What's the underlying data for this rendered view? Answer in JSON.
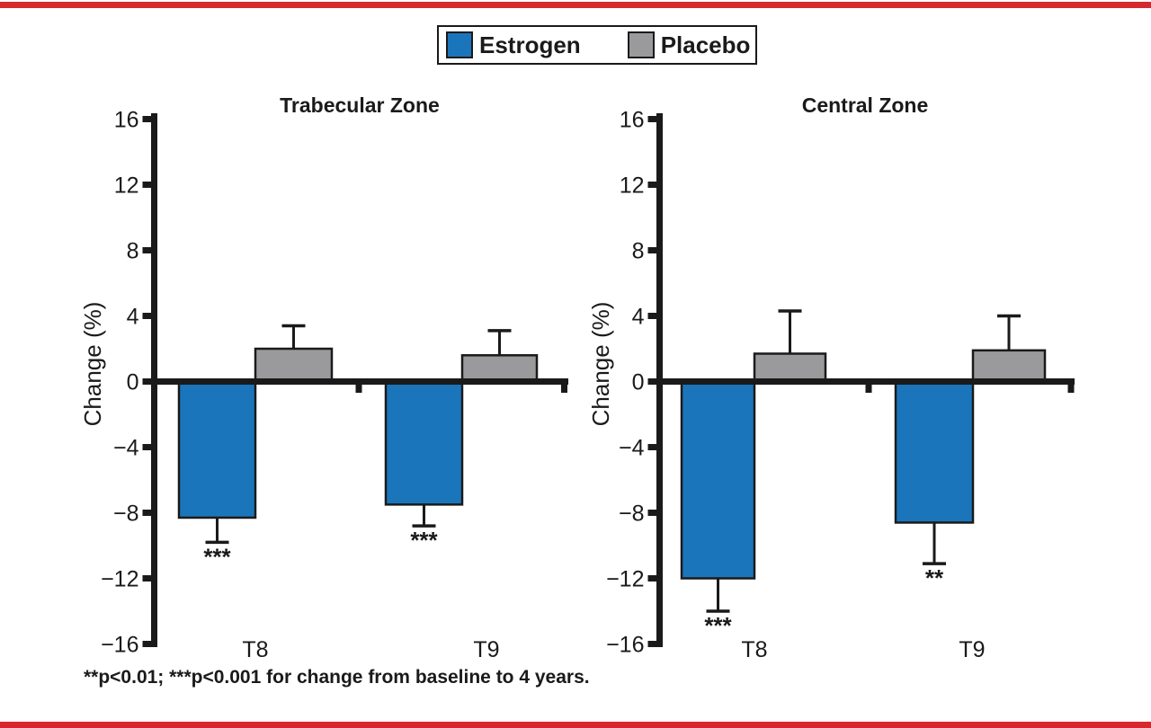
{
  "page": {
    "background": "#ffffff",
    "border_color": "#D7282F",
    "text_color": "#1a1a1a"
  },
  "legend": {
    "items": [
      {
        "label": "Estrogen",
        "color": "#1B75BB"
      },
      {
        "label": "Placebo",
        "color": "#9A9A9C"
      }
    ]
  },
  "footnote": "**p<0.01; ***p<0.001 for change from baseline to 4 years.",
  "chart_data": [
    {
      "type": "bar",
      "title": "Trabecular Zone",
      "ylabel": "Change (%)",
      "ylim": [
        -16,
        16
      ],
      "ytick_step": 4,
      "grid": false,
      "legend_position": "top-center-shared",
      "categories": [
        "T8",
        "T9"
      ],
      "series": [
        {
          "name": "Estrogen",
          "color": "#1B75BB",
          "values": [
            -8.3,
            -7.5
          ],
          "errors": [
            1.5,
            1.3
          ],
          "significance": [
            "***",
            "***"
          ]
        },
        {
          "name": "Placebo",
          "color": "#9A9A9C",
          "values": [
            2.0,
            1.6
          ],
          "errors": [
            1.4,
            1.5
          ],
          "significance": [
            "",
            ""
          ]
        }
      ]
    },
    {
      "type": "bar",
      "title": "Central Zone",
      "ylabel": "Change (%)",
      "ylim": [
        -16,
        16
      ],
      "ytick_step": 4,
      "grid": false,
      "legend_position": "top-center-shared",
      "categories": [
        "T8",
        "T9"
      ],
      "series": [
        {
          "name": "Estrogen",
          "color": "#1B75BB",
          "values": [
            -12.0,
            -8.6
          ],
          "errors": [
            2.0,
            2.5
          ],
          "significance": [
            "***",
            "**"
          ]
        },
        {
          "name": "Placebo",
          "color": "#9A9A9C",
          "values": [
            1.7,
            1.9
          ],
          "errors": [
            2.6,
            2.1
          ],
          "significance": [
            "",
            ""
          ]
        }
      ]
    }
  ]
}
